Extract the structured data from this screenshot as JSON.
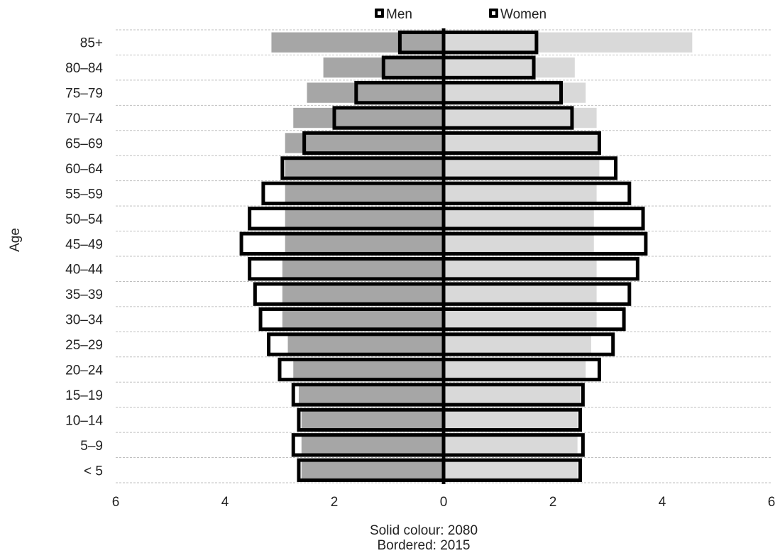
{
  "chart_data": {
    "type": "bar",
    "orientation": "horizontal",
    "variant": "population-pyramid",
    "ylabel": "Age",
    "xlim": [
      -6,
      6
    ],
    "x_ticks": [
      -6,
      -4,
      -2,
      0,
      2,
      4,
      6
    ],
    "x_tick_labels": [
      "6",
      "4",
      "2",
      "0",
      "2",
      "4",
      "6"
    ],
    "categories": [
      "< 5",
      "5–9",
      "10–14",
      "15–19",
      "20–24",
      "25–29",
      "30–34",
      "35–39",
      "40–44",
      "45–49",
      "50–54",
      "55–59",
      "60–64",
      "65–69",
      "70–74",
      "75–79",
      "80–84",
      "85+"
    ],
    "legend": {
      "placement": "top-center",
      "items": [
        "Men",
        "Women"
      ]
    },
    "caption_lines": [
      "Solid colour: 2080",
      "Bordered: 2015"
    ],
    "grid": true,
    "colors": {
      "men_fill": "#a6a6a6",
      "women_fill": "#d9d9d9",
      "border": "#000000",
      "grid": "#bfbfbf"
    },
    "series": [
      {
        "name": "Men",
        "side": "left",
        "style": "solid",
        "values": [
          2.6,
          2.6,
          2.6,
          2.65,
          2.75,
          2.85,
          2.95,
          2.95,
          2.95,
          2.9,
          2.9,
          2.9,
          2.9,
          2.9,
          2.75,
          2.5,
          2.2,
          3.15
        ]
      },
      {
        "name": "Women",
        "side": "right",
        "style": "solid",
        "values": [
          2.45,
          2.45,
          2.45,
          2.5,
          2.6,
          2.7,
          2.8,
          2.8,
          2.8,
          2.75,
          2.75,
          2.8,
          2.85,
          2.85,
          2.8,
          2.6,
          2.4,
          4.55
        ]
      },
      {
        "name": "Men",
        "side": "left",
        "style": "bordered",
        "values": [
          2.65,
          2.75,
          2.65,
          2.75,
          3.0,
          3.2,
          3.35,
          3.45,
          3.55,
          3.7,
          3.55,
          3.3,
          2.95,
          2.55,
          2.0,
          1.6,
          1.1,
          0.8
        ]
      },
      {
        "name": "Women",
        "side": "right",
        "style": "bordered",
        "values": [
          2.5,
          2.55,
          2.5,
          2.55,
          2.85,
          3.1,
          3.3,
          3.4,
          3.55,
          3.7,
          3.65,
          3.4,
          3.15,
          2.85,
          2.35,
          2.15,
          1.65,
          1.7
        ]
      }
    ]
  }
}
